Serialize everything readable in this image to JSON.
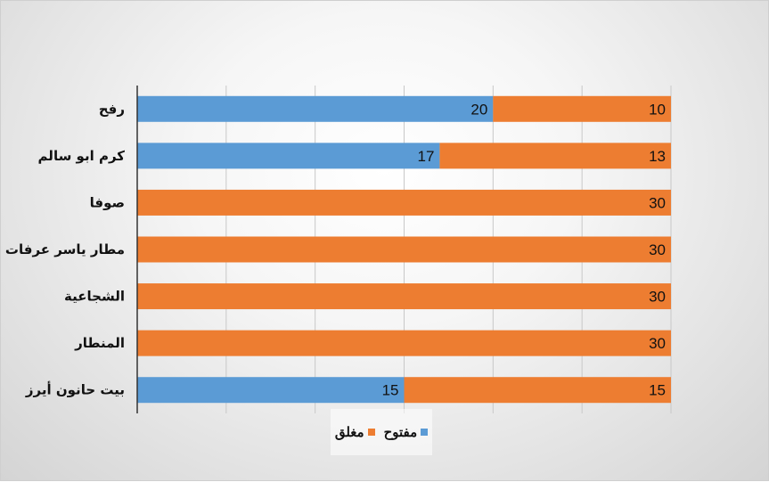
{
  "chart_data": {
    "type": "bar",
    "orientation": "horizontal",
    "stacked": true,
    "categories": [
      "رفح",
      "كرم ابو سالم",
      "صوفا",
      "مطار ياسر عرفات الدولي",
      "الشجاعية",
      "المنطار",
      "بيت حانون أيرز"
    ],
    "series": [
      {
        "name": "مفتوح",
        "color": "#5B9BD5",
        "values": [
          20,
          17,
          0,
          0,
          0,
          0,
          15
        ]
      },
      {
        "name": "مغلق",
        "color": "#ED7D31",
        "values": [
          10,
          13,
          30,
          30,
          30,
          30,
          15
        ]
      }
    ],
    "xlim": [
      0,
      30
    ],
    "grid": true,
    "legend_position": "bottom"
  }
}
